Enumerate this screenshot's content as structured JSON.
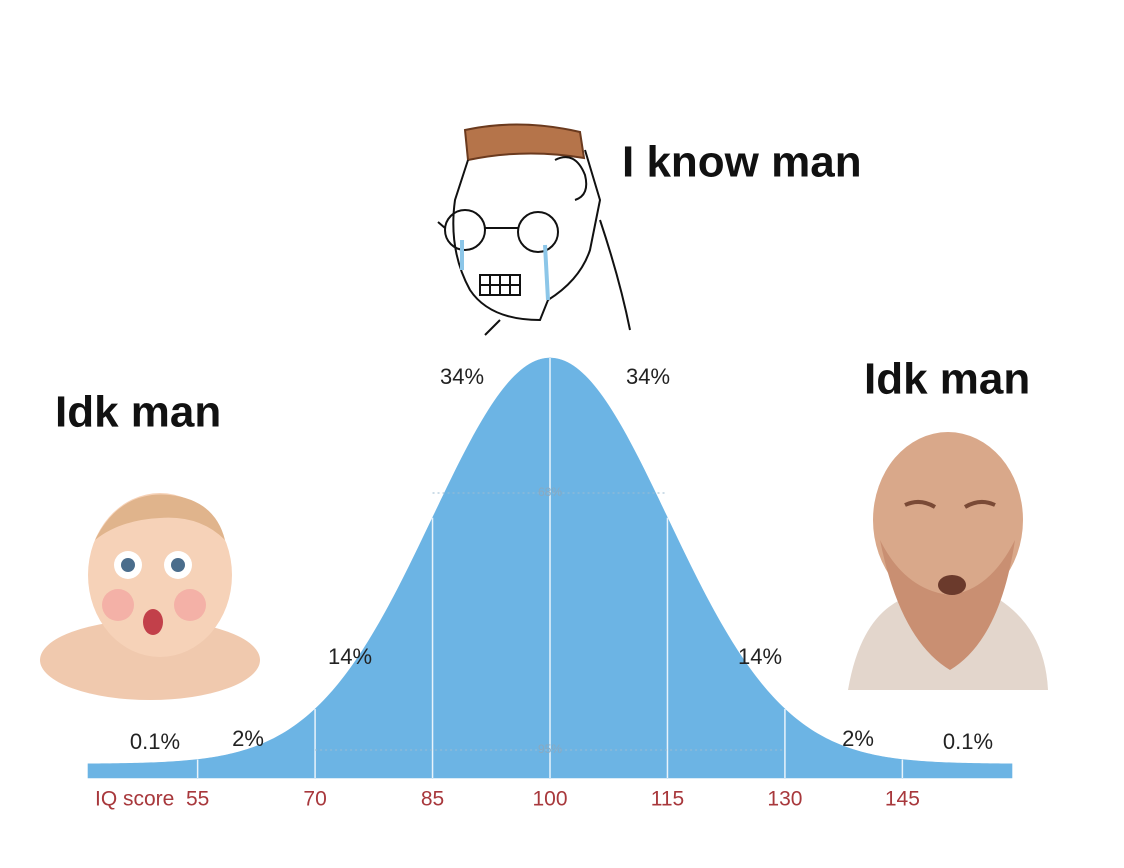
{
  "chart_data": {
    "type": "bell",
    "xlabel": "IQ score",
    "xlim": [
      41,
      159
    ],
    "xticks": [
      55,
      70,
      85,
      100,
      115,
      130,
      145
    ],
    "color": "#6cb4e4",
    "values": [
      0.1,
      2,
      14,
      34,
      34,
      14,
      2,
      0.1
    ],
    "value_labels": [
      "0.1%",
      "2%",
      "14%",
      "34%",
      "34%",
      "14%",
      "2%",
      "0.1%"
    ],
    "spans": {
      "values": [
        68,
        95
      ],
      "value_labels": [
        "68%",
        "95%"
      ]
    },
    "annotations": [
      "Idk man",
      "I know man",
      "Idk man"
    ]
  }
}
